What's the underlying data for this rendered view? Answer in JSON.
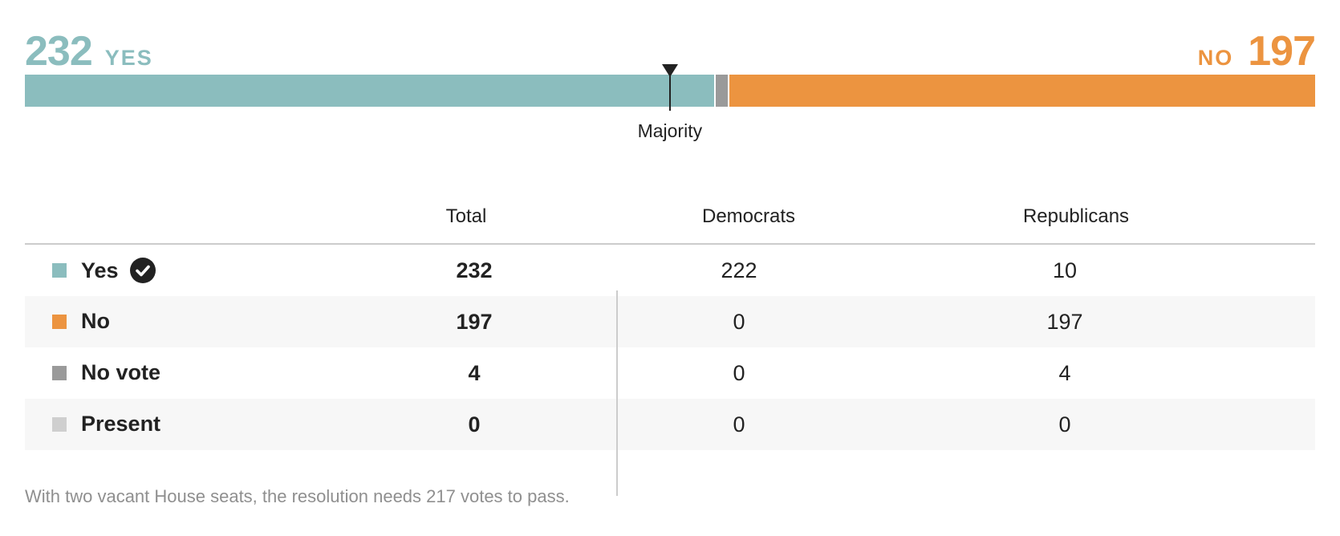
{
  "headline": {
    "yes_count": "232",
    "yes_label": "YES",
    "no_count": "197",
    "no_label": "NO"
  },
  "majority": {
    "label": "Majority",
    "threshold": 217
  },
  "colors": {
    "yes": "#8bbdbe",
    "no": "#ec9440",
    "no_vote": "#9a9a9a",
    "present": "#cfcfcf",
    "check": "#222222"
  },
  "table": {
    "headers": {
      "total": "Total",
      "democrats": "Democrats",
      "republicans": "Republicans"
    },
    "rows": [
      {
        "label": "Yes",
        "total": "232",
        "democrats": "222",
        "republicans": "10",
        "color": "#8bbdbe",
        "passed": true
      },
      {
        "label": "No",
        "total": "197",
        "democrats": "0",
        "republicans": "197",
        "color": "#ec9440"
      },
      {
        "label": "No vote",
        "total": "4",
        "democrats": "0",
        "republicans": "4",
        "color": "#9a9a9a"
      },
      {
        "label": "Present",
        "total": "0",
        "democrats": "0",
        "republicans": "0",
        "color": "#cfcfcf"
      }
    ]
  },
  "footnote": "With two vacant House seats, the resolution needs 217 votes to pass.",
  "chart_data": {
    "type": "bar",
    "orientation": "horizontal-stacked",
    "categories": [
      "Yes",
      "No vote",
      "No"
    ],
    "values": [
      232,
      4,
      197
    ],
    "majority_threshold": 217,
    "series": [
      {
        "name": "Yes",
        "value": 232,
        "color": "#8bbdbe"
      },
      {
        "name": "No vote",
        "value": 4,
        "color": "#9a9a9a"
      },
      {
        "name": "No",
        "value": 197,
        "color": "#ec9440"
      }
    ]
  }
}
